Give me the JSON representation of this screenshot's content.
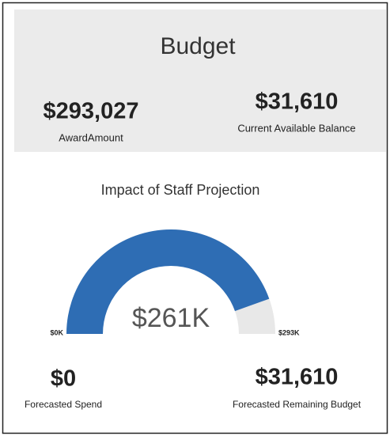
{
  "header": {
    "title": "Budget"
  },
  "cards": [
    {
      "value": "$293,027",
      "label": "AwardAmount"
    },
    {
      "value": "$31,610",
      "label": "Current Available Balance"
    }
  ],
  "chart_data": {
    "type": "gauge",
    "title": "Impact of Staff Projection",
    "values": [
      261
    ],
    "value_labels": [
      "$261K"
    ],
    "color": "#2e6db4",
    "track_color": "#e8e8e8",
    "ylim": [
      0,
      293
    ],
    "yticks": [
      {
        "value": 0,
        "label": "$0K"
      },
      {
        "value": 293,
        "label": "$293K"
      }
    ]
  },
  "footer_cards": [
    {
      "value": "$0",
      "label": "Forecasted Spend"
    },
    {
      "value": "$31,610",
      "label": "Forecasted Remaining Budget"
    }
  ]
}
